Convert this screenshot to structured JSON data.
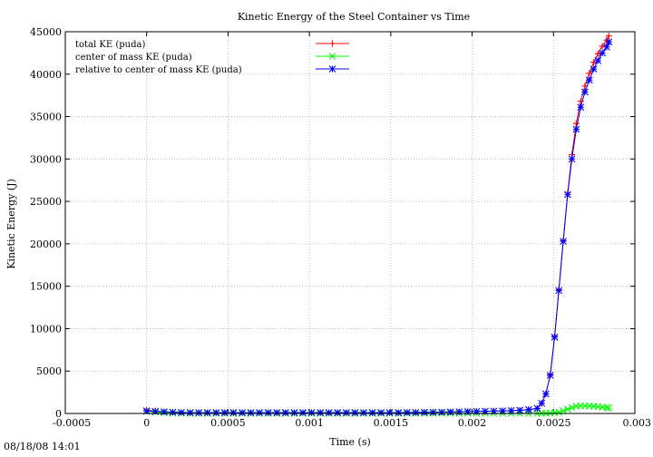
{
  "timestamp": "08/18/08 14:01",
  "colors": {
    "total": "#ff0000",
    "center": "#00ff00",
    "relative": "#0000ff",
    "grid": "#b0b0b0"
  },
  "chart_data": {
    "type": "line",
    "title": "Kinetic Energy of the Steel Container vs Time",
    "xlabel": "Time (s)",
    "ylabel": "Kinetic Energy (J)",
    "xlim": [
      -0.0005,
      0.003
    ],
    "ylim": [
      0,
      45000
    ],
    "xticks": [
      -0.0005,
      0,
      0.0005,
      0.001,
      0.0015,
      0.002,
      0.0025,
      0.003
    ],
    "xtick_labels": [
      "-0.0005",
      "0",
      "0.0005",
      "0.001",
      "0.0015",
      "0.002",
      "0.0025",
      "0.003"
    ],
    "yticks": [
      0,
      5000,
      10000,
      15000,
      20000,
      25000,
      30000,
      35000,
      40000,
      45000
    ],
    "ytick_labels": [
      "0",
      "5000",
      "10000",
      "15000",
      "20000",
      "25000",
      "30000",
      "35000",
      "40000",
      "45000"
    ],
    "grid": true,
    "legend_position": "top-left",
    "x": [
      0,
      5.3e-05,
      0.000107,
      0.00016,
      0.000213,
      0.000267,
      0.00032,
      0.000373,
      0.000427,
      0.00048,
      0.000533,
      0.000587,
      0.00064,
      0.000693,
      0.000747,
      0.0008,
      0.000853,
      0.000907,
      0.00096,
      0.001013,
      0.001067,
      0.00112,
      0.001173,
      0.001227,
      0.00128,
      0.001333,
      0.001387,
      0.00144,
      0.001493,
      0.001547,
      0.0016,
      0.001653,
      0.001707,
      0.00176,
      0.001813,
      0.001867,
      0.00192,
      0.001973,
      0.002027,
      0.00208,
      0.002133,
      0.002187,
      0.00224,
      0.002293,
      0.002347,
      0.0024,
      0.002427,
      0.002453,
      0.00248,
      0.002507,
      0.002533,
      0.00256,
      0.002587,
      0.002613,
      0.00264,
      0.002667,
      0.002693,
      0.00272,
      0.002747,
      0.002773,
      0.0028,
      0.002827,
      0.00284
    ],
    "series": [
      {
        "name": "total KE (puda)",
        "marker": "plus",
        "color": "#ff0000",
        "values": [
          400,
          300,
          200,
          150,
          120,
          100,
          100,
          100,
          100,
          100,
          100,
          100,
          100,
          100,
          100,
          100,
          100,
          100,
          100,
          100,
          100,
          100,
          100,
          100,
          100,
          100,
          100,
          100,
          100,
          100,
          120,
          120,
          140,
          150,
          160,
          180,
          200,
          220,
          240,
          260,
          280,
          300,
          330,
          380,
          450,
          600,
          1200,
          2300,
          4600,
          9100,
          14600,
          20400,
          26000,
          30500,
          34200,
          36800,
          38600,
          40100,
          41400,
          42400,
          43300,
          44000,
          44500
        ]
      },
      {
        "name": "center of mass KE (puda)",
        "marker": "cross",
        "color": "#00ff00",
        "values": [
          250,
          150,
          80,
          50,
          30,
          20,
          15,
          10,
          10,
          10,
          10,
          10,
          10,
          10,
          10,
          10,
          10,
          10,
          10,
          10,
          10,
          10,
          10,
          10,
          10,
          10,
          10,
          10,
          10,
          10,
          10,
          10,
          10,
          10,
          10,
          10,
          10,
          10,
          10,
          10,
          10,
          10,
          10,
          10,
          10,
          10,
          20,
          30,
          50,
          80,
          150,
          300,
          500,
          700,
          850,
          900,
          900,
          880,
          850,
          800,
          750,
          700,
          650
        ]
      },
      {
        "name": "relative to center of mass KE (puda)",
        "marker": "star",
        "color": "#0000ff",
        "values": [
          300,
          250,
          200,
          150,
          120,
          100,
          100,
          100,
          100,
          100,
          100,
          100,
          100,
          100,
          100,
          100,
          100,
          100,
          100,
          100,
          100,
          100,
          100,
          100,
          100,
          100,
          100,
          100,
          100,
          100,
          120,
          120,
          140,
          150,
          160,
          180,
          200,
          220,
          240,
          260,
          280,
          300,
          330,
          380,
          450,
          600,
          1200,
          2300,
          4500,
          9000,
          14500,
          20300,
          25800,
          30000,
          33500,
          36100,
          37900,
          39300,
          40600,
          41600,
          42500,
          43200,
          43800
        ]
      }
    ]
  }
}
